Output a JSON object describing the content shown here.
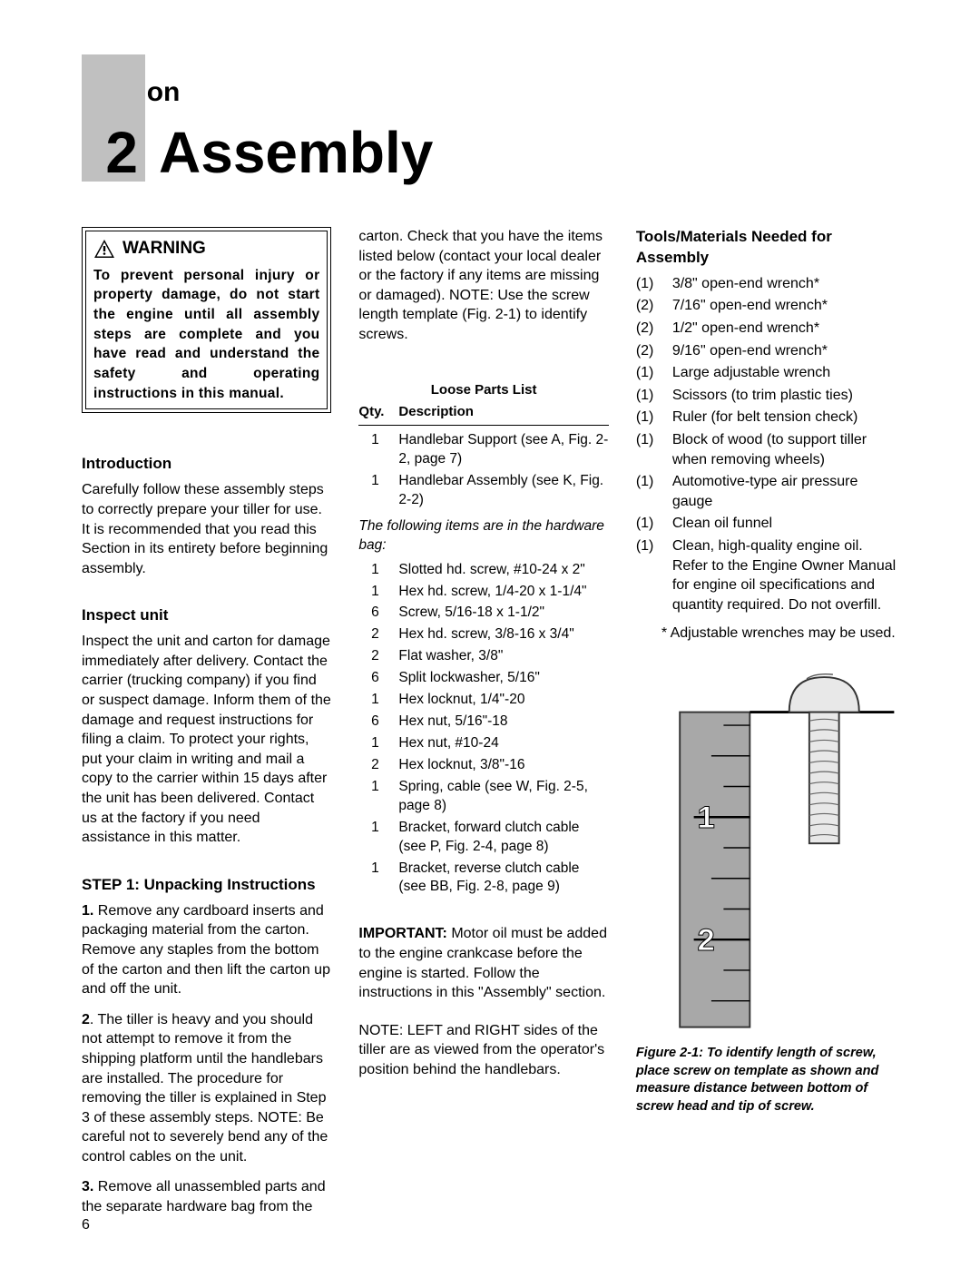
{
  "header": {
    "section_label": "Section",
    "section_number": "2",
    "title": "Assembly"
  },
  "warning": {
    "label": "WARNING",
    "text": "To prevent personal injury or property damage, do not start the engine until all assembly steps are complete and you have read and understand the safety and operating instructions in this manual."
  },
  "col1": {
    "intro_h": "Introduction",
    "intro_p": "Carefully follow these assembly steps to correctly prepare your tiller for use. It is recommended that you read this Section in its entirety before beginning assembly.",
    "inspect_h": "Inspect unit",
    "inspect_p": "Inspect the unit and carton for damage immediately after delivery. Contact the carrier (trucking company) if you find or suspect damage. Inform them of the damage and request instructions for filing a claim. To protect your rights, put your claim in writing and mail a copy to the carrier within 15 days after the unit has been delivered. Contact us at the factory if you need assistance in this matter.",
    "step1_h": "STEP 1: Unpacking Instructions",
    "step1_n1_b": "1.",
    "step1_n1": " Remove any cardboard inserts and packaging material from the carton. Remove any staples from the bottom of the carton and then lift the carton up and off the unit.",
    "step1_n2_b": "2",
    "step1_n2": ". The tiller is heavy and you should not attempt to remove it from the shipping platform until the handlebars are installed. The procedure for removing the tiller is explained in Step 3 of these assembly steps. NOTE: Be careful not to severely bend any of the control cables on the unit.",
    "step1_n3_b": "3.",
    "step1_n3": " Remove all unassembled parts and the separate hardware bag from the"
  },
  "col2": {
    "cont_p": "carton. Check that you have the items listed below (contact your local dealer or the factory if any items are missing or damaged). NOTE: Use the screw length template (Fig. 2-1) to identify screws.",
    "parts_header": "Loose Parts List",
    "parts_qty": "Qty.",
    "parts_desc": "Description",
    "pre_items": [
      {
        "q": "1",
        "d": "Handlebar Support (see A, Fig. 2-2, page 7)"
      },
      {
        "q": "1",
        "d": "Handlebar Assembly (see K, Fig. 2-2)"
      }
    ],
    "hw_note": "The following items are in the hardware bag:",
    "hw_items": [
      {
        "q": "1",
        "d": "Slotted hd. screw, #10-24 x 2\""
      },
      {
        "q": "1",
        "d": "Hex hd. screw, 1/4-20 x 1-1/4\""
      },
      {
        "q": "6",
        "d": "Screw, 5/16-18 x 1-1/2\""
      },
      {
        "q": "2",
        "d": "Hex hd. screw, 3/8-16 x 3/4\""
      },
      {
        "q": "2",
        "d": "Flat washer, 3/8\""
      },
      {
        "q": "6",
        "d": "Split lockwasher, 5/16\""
      },
      {
        "q": "1",
        "d": "Hex locknut, 1/4\"-20"
      },
      {
        "q": "6",
        "d": "Hex nut, 5/16\"-18"
      },
      {
        "q": "1",
        "d": "Hex nut, #10-24"
      },
      {
        "q": "2",
        "d": "Hex locknut, 3/8\"-16"
      },
      {
        "q": "1",
        "d": "Spring, cable (see W, Fig. 2-5, page 8)"
      },
      {
        "q": "1",
        "d": "Bracket, forward clutch cable (see P, Fig. 2-4, page 8)"
      },
      {
        "q": "1",
        "d": "Bracket, reverse clutch cable (see BB, Fig. 2-8, page 9)"
      }
    ],
    "imp_b": "IMPORTANT:",
    "imp_t": " Motor oil must be added to the engine crankcase before the engine is started. Follow the instructions in this \"Assembly\" section.",
    "note_p": "NOTE: LEFT and RIGHT sides of the tiller are as viewed from the operator's position behind the handlebars."
  },
  "col3": {
    "tools_h": "Tools/Materials Needed for Assembly",
    "tools": [
      {
        "q": "(1)",
        "d": "3/8\" open-end wrench*"
      },
      {
        "q": "(2)",
        "d": "7/16\" open-end wrench*"
      },
      {
        "q": "(2)",
        "d": "1/2\" open-end wrench*"
      },
      {
        "q": "(2)",
        "d": "9/16\" open-end wrench*"
      },
      {
        "q": "(1)",
        "d": "Large adjustable wrench"
      },
      {
        "q": "(1)",
        "d": "Scissors (to trim plastic ties)"
      },
      {
        "q": "(1)",
        "d": "Ruler (for belt tension check)"
      },
      {
        "q": "(1)",
        "d": "Block of wood (to support tiller when removing wheels)"
      },
      {
        "q": "(1)",
        "d": "Automotive-type air pressure gauge"
      },
      {
        "q": "(1)",
        "d": "Clean oil funnel"
      },
      {
        "q": "(1)",
        "d": "Clean, high-quality engine oil. Refer to the Engine Owner Manual for engine oil specifications and quantity required. Do not overfill."
      }
    ],
    "footnote": "* Adjustable wrenches may be used.",
    "fig_caption": "Figure 2-1: To identify length of screw, place screw on template as shown and measure distance between bottom of screw head and tip of screw.",
    "ruler_labels": [
      "1",
      "2"
    ]
  },
  "page_number": "6",
  "colors": {
    "gray": "#c0c0c0",
    "light": "#e8e8e8",
    "mid": "#999999"
  }
}
